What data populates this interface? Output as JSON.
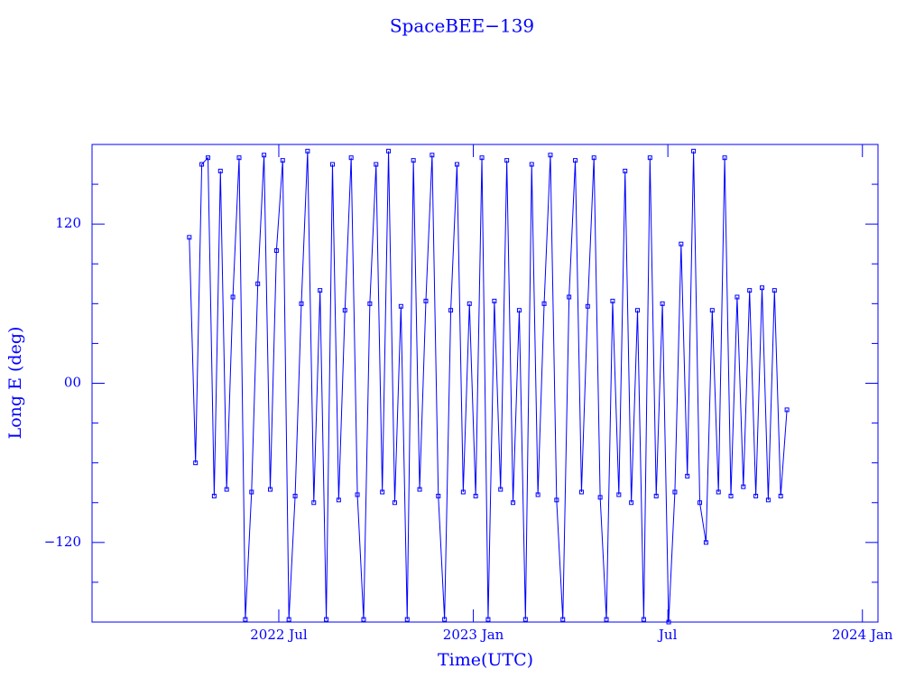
{
  "chart_data": {
    "type": "line",
    "title": "SpaceBEE−139",
    "x_label": "Time(UTC)",
    "y_label": "Long E (deg)",
    "color": "#0000ff",
    "xlim": [
      2022.02,
      2024.04
    ],
    "xticks": [
      {
        "value": 2022.5,
        "label": "2022 Jul"
      },
      {
        "value": 2023.0,
        "label": "2023 Jan"
      },
      {
        "value": 2023.5,
        "label": "Jul"
      },
      {
        "value": 2024.0,
        "label": "2024 Jan"
      }
    ],
    "ylim": [
      -180,
      180
    ],
    "yticks": [
      {
        "value": -120,
        "label": "−120"
      },
      {
        "value": 0,
        "label": "00"
      },
      120
    ],
    "yminor_ticks": [
      -150,
      -90,
      -60,
      -30,
      30,
      60,
      90,
      150
    ],
    "x": [
      2022.27,
      2022.286,
      2022.302,
      2022.318,
      2022.334,
      2022.35,
      2022.366,
      2022.382,
      2022.398,
      2022.414,
      2022.43,
      2022.446,
      2022.462,
      2022.478,
      2022.494,
      2022.51,
      2022.526,
      2022.542,
      2022.558,
      2022.574,
      2022.59,
      2022.606,
      2022.622,
      2022.638,
      2022.654,
      2022.67,
      2022.686,
      2022.702,
      2022.718,
      2022.734,
      2022.75,
      2022.766,
      2022.782,
      2022.798,
      2022.814,
      2022.83,
      2022.846,
      2022.862,
      2022.878,
      2022.894,
      2022.91,
      2022.926,
      2022.942,
      2022.958,
      2022.974,
      2022.99,
      2023.006,
      2023.022,
      2023.038,
      2023.054,
      2023.07,
      2023.086,
      2023.102,
      2023.118,
      2023.134,
      2023.15,
      2023.166,
      2023.182,
      2023.198,
      2023.214,
      2023.23,
      2023.246,
      2023.262,
      2023.278,
      2023.294,
      2023.31,
      2023.326,
      2023.342,
      2023.358,
      2023.374,
      2023.39,
      2023.406,
      2023.422,
      2023.438,
      2023.454,
      2023.47,
      2023.486,
      2023.502,
      2023.518,
      2023.534,
      2023.55,
      2023.566,
      2023.582,
      2023.598,
      2023.614,
      2023.63,
      2023.646,
      2023.662,
      2023.678,
      2023.694,
      2023.71,
      2023.726,
      2023.742,
      2023.758,
      2023.774,
      2023.79,
      2023.806
    ],
    "values": [
      110,
      -60,
      165,
      170,
      -85,
      160,
      -80,
      65,
      170,
      -178,
      -82,
      75,
      172,
      -80,
      100,
      168,
      -178,
      -85,
      60,
      175,
      -90,
      70,
      -178,
      165,
      -88,
      55,
      170,
      -84,
      -178,
      60,
      165,
      -82,
      175,
      -90,
      58,
      -178,
      168,
      -80,
      62,
      172,
      -85,
      -178,
      55,
      165,
      -82,
      60,
      -85,
      170,
      -178,
      62,
      -80,
      168,
      -90,
      55,
      -178,
      165,
      -84,
      60,
      172,
      -88,
      -178,
      65,
      168,
      -82,
      58,
      170,
      -86,
      -178,
      62,
      -84,
      160,
      -90,
      55,
      -178,
      170,
      -85,
      60,
      -180,
      -82,
      105,
      -70,
      175,
      -90,
      -120,
      55,
      -82,
      170,
      -85,
      65,
      -78,
      70,
      -85,
      72,
      -88,
      70,
      -85,
      -20
    ]
  }
}
